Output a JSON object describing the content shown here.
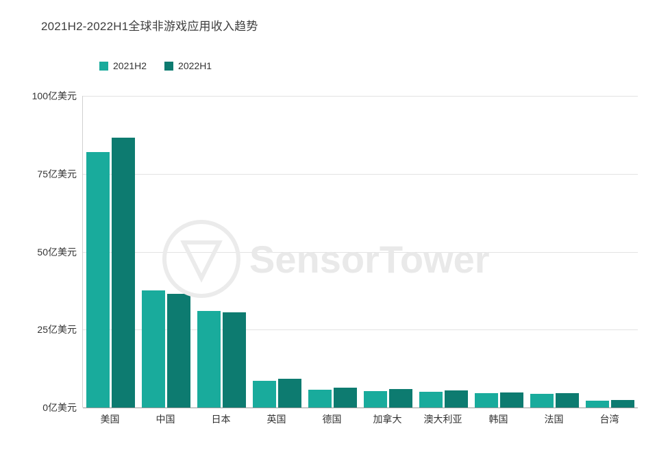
{
  "title": "2021H2-2022H1全球非游戏应用收入趋势",
  "watermark": "SensorTower",
  "chart_data": {
    "type": "bar",
    "title": "2021H2-2022H1全球非游戏应用收入趋势",
    "categories": [
      "美国",
      "中国",
      "日本",
      "英国",
      "德国",
      "加拿大",
      "澳大利亚",
      "韩国",
      "法国",
      "台湾"
    ],
    "series": [
      {
        "name": "2021H2",
        "color": "#19ab9c",
        "values": [
          82,
          37.5,
          31,
          8.5,
          5.7,
          5.3,
          5.0,
          4.6,
          4.4,
          2.2
        ]
      },
      {
        "name": "2022H1",
        "color": "#0d7b70",
        "values": [
          86.5,
          36.5,
          30.5,
          9.2,
          6.4,
          5.9,
          5.5,
          4.8,
          4.6,
          2.4
        ]
      }
    ],
    "ylabel": "亿美元",
    "yticks": [
      0,
      25,
      50,
      75,
      100
    ],
    "ytick_labels": [
      "0亿美元",
      "25亿美元",
      "50亿美元",
      "75亿美元",
      "100亿美元"
    ],
    "ylim": [
      0,
      100
    ],
    "grid": true,
    "legend_position": "top-left"
  }
}
